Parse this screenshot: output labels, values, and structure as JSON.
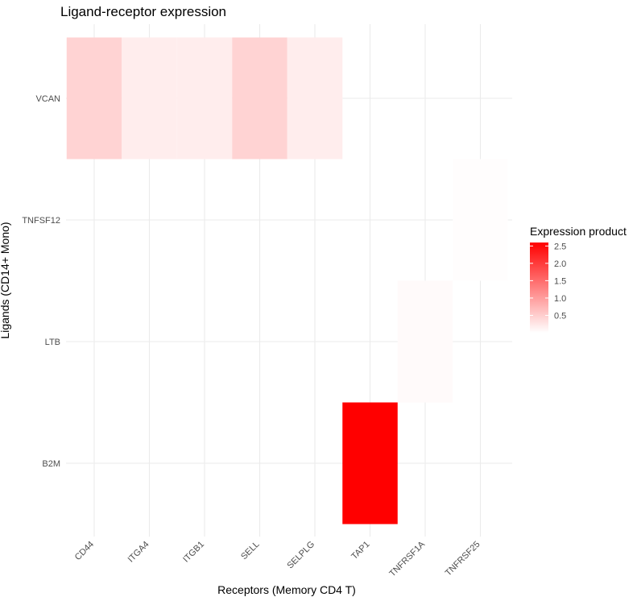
{
  "chart_data": {
    "type": "heatmap",
    "title": "Ligand-receptor expression",
    "xlabel": "Receptors (Memory CD4 T)",
    "ylabel": "Ligands (CD14+ Mono)",
    "x_categories": [
      "CD44",
      "ITGA4",
      "ITGB1",
      "SELL",
      "SELPLG",
      "TAP1",
      "TNFRSF1A",
      "TNFRSF25"
    ],
    "y_categories": [
      "B2M",
      "LTB",
      "TNFSF12",
      "VCAN"
    ],
    "cells": [
      {
        "x": "CD44",
        "y": "VCAN",
        "value": 0.45
      },
      {
        "x": "ITGA4",
        "y": "VCAN",
        "value": 0.18
      },
      {
        "x": "ITGB1",
        "y": "VCAN",
        "value": 0.18
      },
      {
        "x": "SELL",
        "y": "VCAN",
        "value": 0.45
      },
      {
        "x": "SELPLG",
        "y": "VCAN",
        "value": 0.18
      },
      {
        "x": "TAP1",
        "y": "B2M",
        "value": 2.6
      },
      {
        "x": "TNFRSF1A",
        "y": "LTB",
        "value": 0.05
      },
      {
        "x": "TNFRSF25",
        "y": "TNFSF12",
        "value": 0.02
      }
    ],
    "legend": {
      "title": "Expression product",
      "ticks": [
        "0.5",
        "1.0",
        "1.5",
        "2.0",
        "2.5"
      ],
      "tick_values": [
        0.5,
        1.0,
        1.5,
        2.0,
        2.5
      ],
      "range": [
        0.0,
        2.6
      ],
      "low_color": "#ffffff",
      "high_color": "#ff0000",
      "position": "right"
    },
    "grid": true
  }
}
